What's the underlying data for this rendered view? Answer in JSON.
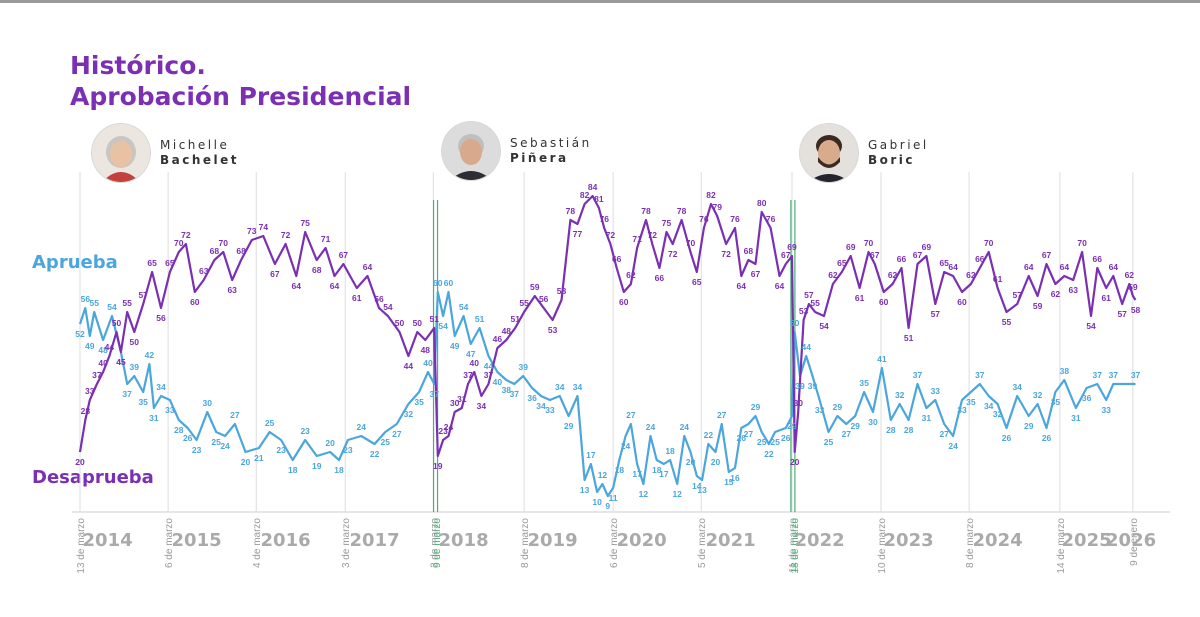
{
  "title": {
    "line1": "Histórico.",
    "line2": "Aprobación Presidencial"
  },
  "leaders": [
    {
      "first": "Michelle",
      "last": "Bachelet"
    },
    {
      "first": "Sebastián",
      "last": "Piñera"
    },
    {
      "first": "Gabriel",
      "last": "Boric"
    }
  ],
  "series_labels": {
    "approve": "Aprueba",
    "disapprove": "Desaprueba"
  },
  "colors": {
    "approve": "#4ba6dd",
    "disapprove": "#7b2fb3",
    "marker": "#4cae7a",
    "axis": "#999999",
    "grid": "#dddddd",
    "year": "#aaaaaa"
  },
  "chart_data": {
    "type": "line",
    "title": "Histórico. Aprobación Presidencial",
    "xlabel": "",
    "ylabel": "",
    "x_unit": "year",
    "xlim": [
      2014.19,
      2026.1
    ],
    "ylim": [
      5,
      90
    ],
    "grid": "vertical",
    "year_labels": [
      {
        "label": "2014",
        "x": 2014.5
      },
      {
        "label": "2015",
        "x": 2015.5
      },
      {
        "label": "2016",
        "x": 2016.5
      },
      {
        "label": "2017",
        "x": 2017.5
      },
      {
        "label": "2018",
        "x": 2018.5
      },
      {
        "label": "2019",
        "x": 2019.5
      },
      {
        "label": "2020",
        "x": 2020.5
      },
      {
        "label": "2021",
        "x": 2021.5
      },
      {
        "label": "2022",
        "x": 2022.5
      },
      {
        "label": "2023",
        "x": 2023.5
      },
      {
        "label": "2024",
        "x": 2024.5
      },
      {
        "label": "2025",
        "x": 2025.5
      },
      {
        "label": "2026",
        "x": 2026.0
      }
    ],
    "date_labels": [
      {
        "label": "13 de marzo",
        "x": 2014.19,
        "marker": false
      },
      {
        "label": "6 de marzo",
        "x": 2015.18,
        "marker": false
      },
      {
        "label": "4 de marzo",
        "x": 2016.17,
        "marker": false
      },
      {
        "label": "3 de marzo",
        "x": 2017.17,
        "marker": false
      },
      {
        "label": "2 de marzo",
        "x": 2018.16,
        "marker": false
      },
      {
        "label": "9 de marzo",
        "x": 2018.19,
        "marker": true
      },
      {
        "label": "8 de marzo",
        "x": 2019.18,
        "marker": false
      },
      {
        "label": "6 de marzo",
        "x": 2020.18,
        "marker": false
      },
      {
        "label": "5 de marzo",
        "x": 2021.17,
        "marker": false
      },
      {
        "label": "11 de marzo",
        "x": 2022.19,
        "marker": false
      },
      {
        "label": "18 de marzo",
        "x": 2022.21,
        "marker": true
      },
      {
        "label": "10 de marzo",
        "x": 2023.19,
        "marker": false
      },
      {
        "label": "8 de marzo",
        "x": 2024.18,
        "marker": false
      },
      {
        "label": "14 de marzo",
        "x": 2025.2,
        "marker": false
      },
      {
        "label": "9 de enero",
        "x": 2026.02,
        "marker": false
      }
    ],
    "government_changes": [
      2018.185,
      2022.2
    ],
    "series": [
      {
        "name": "Aprueba",
        "key": "approve",
        "points": [
          [
            2014.19,
            52
          ],
          [
            2014.25,
            56
          ],
          [
            2014.3,
            49
          ],
          [
            2014.35,
            55
          ],
          [
            2014.45,
            48
          ],
          [
            2014.55,
            54
          ],
          [
            2014.65,
            45
          ],
          [
            2014.72,
            37
          ],
          [
            2014.8,
            39
          ],
          [
            2014.9,
            35
          ],
          [
            2014.97,
            42
          ],
          [
            2015.02,
            31
          ],
          [
            2015.1,
            34
          ],
          [
            2015.2,
            33
          ],
          [
            2015.3,
            28
          ],
          [
            2015.4,
            26
          ],
          [
            2015.5,
            23
          ],
          [
            2015.62,
            30
          ],
          [
            2015.72,
            25
          ],
          [
            2015.82,
            24
          ],
          [
            2015.93,
            27
          ],
          [
            2016.05,
            20
          ],
          [
            2016.2,
            21
          ],
          [
            2016.32,
            25
          ],
          [
            2016.45,
            23
          ],
          [
            2016.58,
            18
          ],
          [
            2016.72,
            23
          ],
          [
            2016.85,
            19
          ],
          [
            2017.0,
            20
          ],
          [
            2017.1,
            18
          ],
          [
            2017.2,
            23
          ],
          [
            2017.35,
            24
          ],
          [
            2017.5,
            22
          ],
          [
            2017.62,
            25
          ],
          [
            2017.75,
            27
          ],
          [
            2017.88,
            32
          ],
          [
            2018.0,
            35
          ],
          [
            2018.1,
            40
          ],
          [
            2018.17,
            37
          ],
          [
            2018.21,
            60
          ],
          [
            2018.27,
            54
          ],
          [
            2018.33,
            60
          ],
          [
            2018.4,
            49
          ],
          [
            2018.5,
            54
          ],
          [
            2018.58,
            47
          ],
          [
            2018.68,
            51
          ],
          [
            2018.78,
            44
          ],
          [
            2018.88,
            40
          ],
          [
            2018.98,
            38
          ],
          [
            2019.07,
            37
          ],
          [
            2019.17,
            39
          ],
          [
            2019.27,
            36
          ],
          [
            2019.37,
            34
          ],
          [
            2019.47,
            33
          ],
          [
            2019.58,
            34
          ],
          [
            2019.68,
            29
          ],
          [
            2019.78,
            34
          ],
          [
            2019.86,
            13
          ],
          [
            2019.93,
            17
          ],
          [
            2020.0,
            10
          ],
          [
            2020.06,
            12
          ],
          [
            2020.12,
            9
          ],
          [
            2020.18,
            11
          ],
          [
            2020.25,
            18
          ],
          [
            2020.32,
            24
          ],
          [
            2020.38,
            27
          ],
          [
            2020.45,
            17
          ],
          [
            2020.52,
            12
          ],
          [
            2020.6,
            24
          ],
          [
            2020.67,
            18
          ],
          [
            2020.75,
            17
          ],
          [
            2020.82,
            18
          ],
          [
            2020.9,
            12
          ],
          [
            2020.98,
            24
          ],
          [
            2021.05,
            20
          ],
          [
            2021.12,
            14
          ],
          [
            2021.18,
            13
          ],
          [
            2021.25,
            22
          ],
          [
            2021.33,
            20
          ],
          [
            2021.4,
            27
          ],
          [
            2021.48,
            15
          ],
          [
            2021.55,
            16
          ],
          [
            2021.62,
            26
          ],
          [
            2021.7,
            27
          ],
          [
            2021.78,
            29
          ],
          [
            2021.85,
            25
          ],
          [
            2021.93,
            22
          ],
          [
            2022.0,
            25
          ],
          [
            2022.12,
            26
          ],
          [
            2022.19,
            29
          ],
          [
            2022.22,
            50
          ],
          [
            2022.28,
            39
          ],
          [
            2022.35,
            44
          ],
          [
            2022.42,
            39
          ],
          [
            2022.5,
            33
          ],
          [
            2022.6,
            25
          ],
          [
            2022.7,
            29
          ],
          [
            2022.8,
            27
          ],
          [
            2022.9,
            29
          ],
          [
            2023.0,
            35
          ],
          [
            2023.1,
            30
          ],
          [
            2023.2,
            41
          ],
          [
            2023.3,
            28
          ],
          [
            2023.4,
            32
          ],
          [
            2023.5,
            28
          ],
          [
            2023.6,
            37
          ],
          [
            2023.7,
            31
          ],
          [
            2023.8,
            33
          ],
          [
            2023.9,
            27
          ],
          [
            2024.0,
            24
          ],
          [
            2024.1,
            33
          ],
          [
            2024.2,
            35
          ],
          [
            2024.3,
            37
          ],
          [
            2024.4,
            34
          ],
          [
            2024.5,
            32
          ],
          [
            2024.6,
            26
          ],
          [
            2024.72,
            34
          ],
          [
            2024.85,
            29
          ],
          [
            2024.95,
            32
          ],
          [
            2025.05,
            26
          ],
          [
            2025.15,
            35
          ],
          [
            2025.25,
            38
          ],
          [
            2025.38,
            31
          ],
          [
            2025.5,
            36
          ],
          [
            2025.62,
            37
          ],
          [
            2025.72,
            33
          ],
          [
            2025.8,
            37
          ],
          [
            2026.05,
            37
          ]
        ]
      },
      {
        "name": "Desaprueba",
        "key": "disapprove",
        "points": [
          [
            2014.19,
            20
          ],
          [
            2014.25,
            28
          ],
          [
            2014.3,
            33
          ],
          [
            2014.38,
            37
          ],
          [
            2014.45,
            40
          ],
          [
            2014.52,
            44
          ],
          [
            2014.6,
            50
          ],
          [
            2014.65,
            45
          ],
          [
            2014.72,
            55
          ],
          [
            2014.8,
            50
          ],
          [
            2014.9,
            57
          ],
          [
            2015.0,
            65
          ],
          [
            2015.1,
            56
          ],
          [
            2015.2,
            65
          ],
          [
            2015.3,
            70
          ],
          [
            2015.38,
            72
          ],
          [
            2015.48,
            60
          ],
          [
            2015.58,
            63
          ],
          [
            2015.7,
            68
          ],
          [
            2015.8,
            70
          ],
          [
            2015.9,
            63
          ],
          [
            2016.0,
            68
          ],
          [
            2016.12,
            73
          ],
          [
            2016.25,
            74
          ],
          [
            2016.38,
            67
          ],
          [
            2016.5,
            72
          ],
          [
            2016.62,
            64
          ],
          [
            2016.72,
            75
          ],
          [
            2016.85,
            68
          ],
          [
            2016.95,
            71
          ],
          [
            2017.05,
            64
          ],
          [
            2017.15,
            67
          ],
          [
            2017.3,
            61
          ],
          [
            2017.42,
            64
          ],
          [
            2017.55,
            56
          ],
          [
            2017.65,
            54
          ],
          [
            2017.78,
            50
          ],
          [
            2017.88,
            44
          ],
          [
            2017.98,
            50
          ],
          [
            2018.07,
            48
          ],
          [
            2018.17,
            51
          ],
          [
            2018.21,
            19
          ],
          [
            2018.27,
            23
          ],
          [
            2018.33,
            24
          ],
          [
            2018.4,
            30
          ],
          [
            2018.48,
            31
          ],
          [
            2018.55,
            37
          ],
          [
            2018.62,
            40
          ],
          [
            2018.7,
            34
          ],
          [
            2018.78,
            37
          ],
          [
            2018.88,
            46
          ],
          [
            2018.98,
            48
          ],
          [
            2019.08,
            51
          ],
          [
            2019.18,
            55
          ],
          [
            2019.3,
            59
          ],
          [
            2019.4,
            56
          ],
          [
            2019.5,
            53
          ],
          [
            2019.6,
            58
          ],
          [
            2019.7,
            78
          ],
          [
            2019.78,
            77
          ],
          [
            2019.86,
            82
          ],
          [
            2019.95,
            84
          ],
          [
            2020.02,
            81
          ],
          [
            2020.08,
            76
          ],
          [
            2020.15,
            72
          ],
          [
            2020.22,
            66
          ],
          [
            2020.3,
            60
          ],
          [
            2020.38,
            62
          ],
          [
            2020.45,
            71
          ],
          [
            2020.55,
            78
          ],
          [
            2020.62,
            72
          ],
          [
            2020.7,
            66
          ],
          [
            2020.78,
            75
          ],
          [
            2020.85,
            72
          ],
          [
            2020.95,
            78
          ],
          [
            2021.05,
            70
          ],
          [
            2021.12,
            65
          ],
          [
            2021.2,
            76
          ],
          [
            2021.28,
            82
          ],
          [
            2021.35,
            79
          ],
          [
            2021.45,
            72
          ],
          [
            2021.55,
            76
          ],
          [
            2021.62,
            64
          ],
          [
            2021.7,
            68
          ],
          [
            2021.78,
            67
          ],
          [
            2021.85,
            80
          ],
          [
            2021.95,
            76
          ],
          [
            2022.05,
            64
          ],
          [
            2022.12,
            67
          ],
          [
            2022.19,
            69
          ],
          [
            2022.22,
            20
          ],
          [
            2022.26,
            30
          ],
          [
            2022.32,
            53
          ],
          [
            2022.38,
            57
          ],
          [
            2022.45,
            55
          ],
          [
            2022.55,
            54
          ],
          [
            2022.65,
            62
          ],
          [
            2022.75,
            65
          ],
          [
            2022.85,
            69
          ],
          [
            2022.95,
            61
          ],
          [
            2023.05,
            70
          ],
          [
            2023.12,
            67
          ],
          [
            2023.22,
            60
          ],
          [
            2023.32,
            62
          ],
          [
            2023.42,
            66
          ],
          [
            2023.5,
            51
          ],
          [
            2023.6,
            67
          ],
          [
            2023.7,
            69
          ],
          [
            2023.8,
            57
          ],
          [
            2023.9,
            65
          ],
          [
            2024.0,
            64
          ],
          [
            2024.1,
            60
          ],
          [
            2024.2,
            62
          ],
          [
            2024.3,
            66
          ],
          [
            2024.4,
            70
          ],
          [
            2024.5,
            61
          ],
          [
            2024.6,
            55
          ],
          [
            2024.72,
            57
          ],
          [
            2024.85,
            64
          ],
          [
            2024.95,
            59
          ],
          [
            2025.05,
            67
          ],
          [
            2025.15,
            62
          ],
          [
            2025.25,
            64
          ],
          [
            2025.35,
            63
          ],
          [
            2025.45,
            70
          ],
          [
            2025.55,
            54
          ],
          [
            2025.62,
            66
          ],
          [
            2025.72,
            61
          ],
          [
            2025.8,
            64
          ],
          [
            2025.9,
            57
          ],
          [
            2025.98,
            62
          ],
          [
            2026.02,
            59
          ],
          [
            2026.05,
            58
          ]
        ]
      }
    ]
  }
}
